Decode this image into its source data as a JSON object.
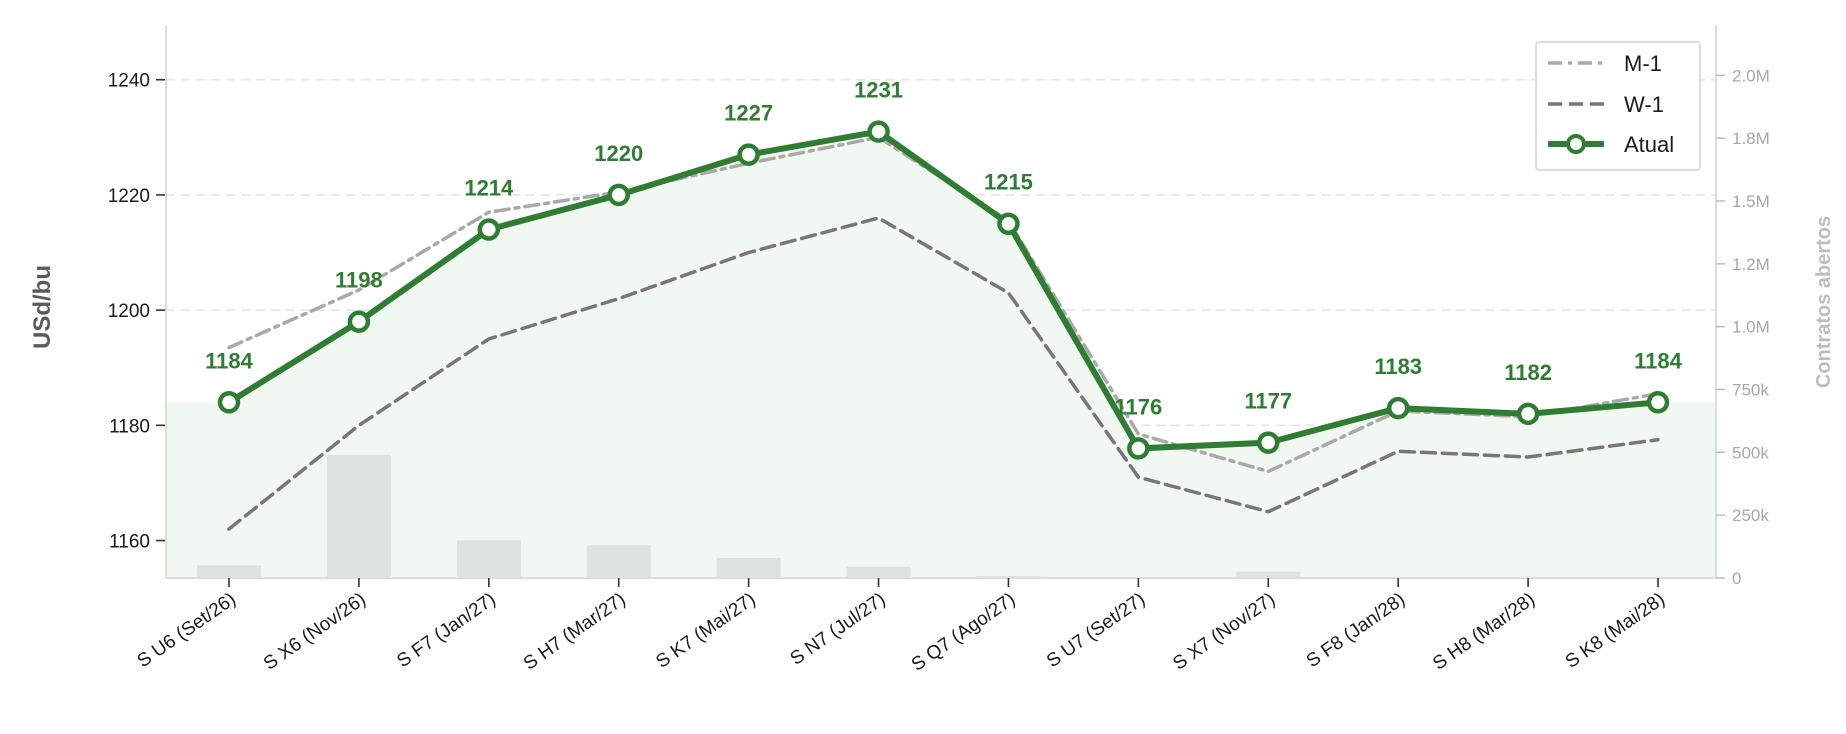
{
  "chart_data": {
    "type": "line",
    "categories": [
      "S U6 (Set/26)",
      "S X6 (Nov/26)",
      "S F7 (Jan/27)",
      "S H7 (Mar/27)",
      "S K7 (Mai/27)",
      "S N7 (Jul/27)",
      "S Q7 (Ago/27)",
      "S U7 (Set/27)",
      "S X7 (Nov/27)",
      "S F8 (Jan/28)",
      "S H8 (Mar/28)",
      "S K8 (Mai/28)"
    ],
    "series": [
      {
        "name": "M-1",
        "style": "dashdot",
        "color": "#a9a9a9",
        "values": [
          1193.5,
          1203.5,
          1217,
          1220.5,
          1225.5,
          1230,
          1215.5,
          1178.5,
          1172,
          1182.5,
          1181.5,
          1185.5
        ]
      },
      {
        "name": "W-1",
        "style": "dashed",
        "color": "#777777",
        "values": [
          1162,
          1180,
          1195,
          1202,
          1210,
          1216,
          1203,
          1171,
          1165,
          1175.5,
          1174.5,
          1177.5
        ]
      },
      {
        "name": "Atual",
        "style": "solid-marker",
        "color": "#2e7d32",
        "values": [
          1184,
          1198,
          1214,
          1220,
          1227,
          1231,
          1215,
          1176,
          1177,
          1183,
          1182,
          1184
        ]
      }
    ],
    "data_labels": [
      "1184",
      "1198",
      "1214",
      "1220",
      "1227",
      "1231",
      "1215",
      "1176",
      "1177",
      "1183",
      "1182",
      "1184"
    ],
    "open_interest": [
      50000,
      490000,
      150000,
      130000,
      80000,
      45000,
      8000,
      0,
      25000,
      0,
      0,
      0
    ],
    "ylabel": "USd/bu",
    "y2label": "Contratos abertos",
    "ylim": [
      1153.5,
      1249.5
    ],
    "y2lim": [
      0,
      2200000
    ],
    "yticks": [
      "1160",
      "1180",
      "1200",
      "1220",
      "1240"
    ],
    "y2ticks": [
      "0",
      "250k",
      "500k",
      "750k",
      "1.0M",
      "1.2M",
      "1.5M",
      "1.8M",
      "2.0M"
    ],
    "y2tick_values": [
      0,
      250000,
      500000,
      750000,
      1000000,
      1250000,
      1500000,
      1750000,
      2000000
    ],
    "shade_baseline": 1184,
    "grid": true,
    "legend": "top-right"
  },
  "colors": {
    "accent": "#2e7d32",
    "shade": "#f1f8f1",
    "bars": "#dde3dd"
  }
}
